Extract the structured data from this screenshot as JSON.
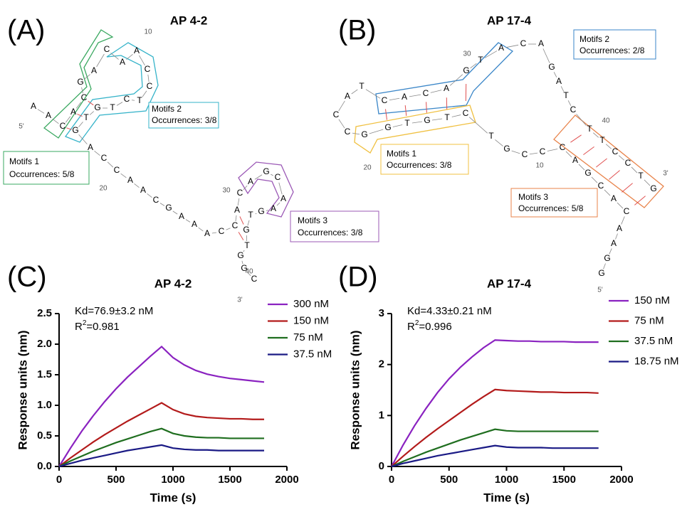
{
  "panel_labels": [
    "(A)",
    "(B)",
    "(C)",
    "(D)"
  ],
  "structures": [
    {
      "title": "AP 4-2",
      "nucleotides": [
        "A",
        "A",
        "C",
        "A",
        "C",
        "G",
        "A",
        "C",
        "A",
        "A",
        "C",
        "C",
        "T",
        "C",
        "T",
        "G",
        "T",
        "G",
        "A",
        "C",
        "C",
        "A",
        "A",
        "C",
        "G",
        "A",
        "A",
        "A",
        "C",
        "C",
        "A",
        "C",
        "A",
        "G",
        "C",
        "A",
        "A",
        "G",
        "T",
        "G",
        "T",
        "G",
        "G",
        "C"
      ],
      "position_labels": [
        "5'",
        "10",
        "20",
        "30",
        "40",
        "3'"
      ],
      "motifs": [
        {
          "name": "Motifs 1",
          "occurrences": "Occurrences: 5/8",
          "color": "#3aa860"
        },
        {
          "name": "Motifs 2",
          "occurrences": "Occurrences: 3/8",
          "color": "#35b3c9"
        },
        {
          "name": "Motifs 3",
          "occurrences": "Occurrences: 3/8",
          "color": "#9b59b6"
        }
      ]
    },
    {
      "title": "AP 17-4",
      "nucleotides": [
        "G",
        "G",
        "A",
        "A",
        "C",
        "A",
        "C",
        "G",
        "A",
        "C",
        "C",
        "C",
        "G",
        "T",
        "C",
        "T",
        "G",
        "T",
        "G",
        "G",
        "C",
        "C",
        "A",
        "T",
        "C",
        "A",
        "C",
        "A",
        "G",
        "T",
        "A",
        "C",
        "A",
        "G",
        "A",
        "T",
        "C",
        "T",
        "T",
        "C",
        "C",
        "T",
        "G"
      ],
      "position_labels": [
        "5'",
        "10",
        "20",
        "30",
        "40",
        "3'"
      ],
      "motifs": [
        {
          "name": "Motifs 1",
          "occurrences": "Occurrences: 3/8",
          "color": "#f0c040"
        },
        {
          "name": "Motifs 2",
          "occurrences": "Occurrences: 2/8",
          "color": "#3a86c8"
        },
        {
          "name": "Motifs 3",
          "occurrences": "Occurrences: 5/8",
          "color": "#e8834a"
        }
      ]
    }
  ],
  "chart_data": [
    {
      "type": "line",
      "title": "AP 4-2",
      "xlabel": "Time (s)",
      "ylabel": "Response units (nm)",
      "kd": "Kd=76.9±3.2 nM",
      "r2_symbol": "R",
      "r2_superscript": "2",
      "r2_value": "=0.981",
      "x": [
        0,
        100,
        200,
        300,
        400,
        500,
        600,
        700,
        800,
        900,
        1000,
        1100,
        1200,
        1300,
        1400,
        1500,
        1600,
        1700,
        1800
      ],
      "xlim": [
        0,
        2000
      ],
      "xticks": [
        0,
        500,
        1000,
        1500,
        2000
      ],
      "ylim": [
        0,
        2.5
      ],
      "yticks": [
        {
          "value": 0,
          "label": "0.0"
        },
        {
          "value": 0.5,
          "label": "0.5"
        },
        {
          "value": 1,
          "label": "1.0"
        },
        {
          "value": 1.5,
          "label": "1.5"
        },
        {
          "value": 2,
          "label": "2.0"
        },
        {
          "value": 2.5,
          "label": "2.5"
        }
      ],
      "series": [
        {
          "name": "300 nM",
          "color": "#8a22c0",
          "values": [
            0,
            0.3,
            0.58,
            0.83,
            1.06,
            1.27,
            1.46,
            1.63,
            1.8,
            1.96,
            1.78,
            1.66,
            1.57,
            1.51,
            1.47,
            1.44,
            1.42,
            1.4,
            1.38
          ]
        },
        {
          "name": "150 nM",
          "color": "#b31b1b",
          "values": [
            0,
            0.14,
            0.27,
            0.4,
            0.52,
            0.63,
            0.74,
            0.84,
            0.94,
            1.04,
            0.93,
            0.86,
            0.82,
            0.8,
            0.79,
            0.78,
            0.78,
            0.77,
            0.77
          ]
        },
        {
          "name": "75 nM",
          "color": "#1f6e1f",
          "values": [
            0,
            0.09,
            0.17,
            0.25,
            0.32,
            0.39,
            0.45,
            0.51,
            0.57,
            0.62,
            0.54,
            0.5,
            0.48,
            0.47,
            0.47,
            0.46,
            0.46,
            0.46,
            0.46
          ]
        },
        {
          "name": "37.5 nM",
          "color": "#1a1a85",
          "values": [
            0,
            0.05,
            0.1,
            0.14,
            0.18,
            0.22,
            0.26,
            0.29,
            0.32,
            0.35,
            0.3,
            0.28,
            0.27,
            0.27,
            0.26,
            0.26,
            0.26,
            0.26,
            0.26
          ]
        }
      ]
    },
    {
      "type": "line",
      "title": "AP 17-4",
      "xlabel": "Time (s)",
      "ylabel": "Response units (nm)",
      "kd": "Kd=4.33±0.21 nM",
      "r2_symbol": "R",
      "r2_superscript": "2",
      "r2_value": "=0.996",
      "x": [
        0,
        100,
        200,
        300,
        400,
        500,
        600,
        700,
        800,
        900,
        1000,
        1100,
        1200,
        1300,
        1400,
        1500,
        1600,
        1700,
        1800
      ],
      "xlim": [
        0,
        2000
      ],
      "xticks": [
        0,
        500,
        1000,
        1500,
        2000
      ],
      "ylim": [
        0,
        3
      ],
      "yticks": [
        0,
        1,
        2,
        3
      ],
      "series": [
        {
          "name": "150 nM",
          "color": "#8a22c0",
          "values": [
            0,
            0.42,
            0.8,
            1.14,
            1.45,
            1.72,
            1.95,
            2.15,
            2.33,
            2.48,
            2.47,
            2.46,
            2.46,
            2.45,
            2.45,
            2.45,
            2.44,
            2.44,
            2.44
          ]
        },
        {
          "name": "75 nM",
          "color": "#b31b1b",
          "values": [
            0,
            0.2,
            0.39,
            0.57,
            0.74,
            0.9,
            1.06,
            1.22,
            1.37,
            1.51,
            1.49,
            1.48,
            1.47,
            1.46,
            1.46,
            1.45,
            1.45,
            1.45,
            1.44
          ]
        },
        {
          "name": "37.5 nM",
          "color": "#1f6e1f",
          "values": [
            0,
            0.1,
            0.19,
            0.28,
            0.36,
            0.44,
            0.52,
            0.59,
            0.66,
            0.73,
            0.7,
            0.69,
            0.69,
            0.69,
            0.69,
            0.69,
            0.69,
            0.69,
            0.69
          ]
        },
        {
          "name": "18.75 nM",
          "color": "#1a1a85",
          "values": [
            0,
            0.06,
            0.11,
            0.16,
            0.21,
            0.25,
            0.29,
            0.33,
            0.37,
            0.41,
            0.38,
            0.37,
            0.37,
            0.37,
            0.36,
            0.36,
            0.36,
            0.36,
            0.36
          ]
        }
      ]
    }
  ]
}
